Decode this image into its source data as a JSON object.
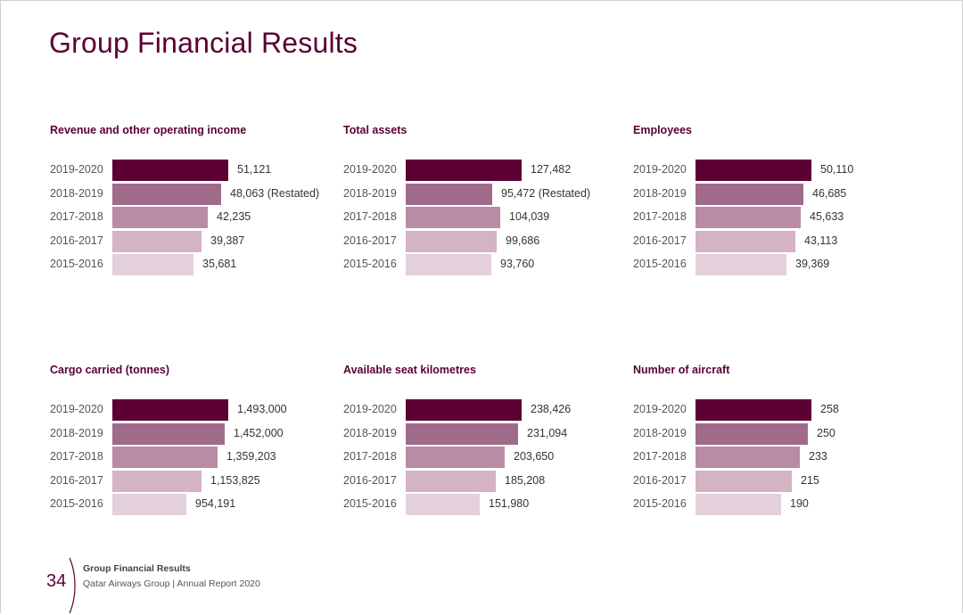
{
  "page": {
    "title": "Group Financial Results",
    "footer": {
      "page_number": "34",
      "section": "Group Financial Results",
      "publication": "Qatar Airways Group | Annual Report 2020"
    }
  },
  "colors": [
    "#5c0033",
    "#a06a8a",
    "#b98ca4",
    "#d3b3c4",
    "#e4d0da"
  ],
  "chart_data": [
    {
      "type": "bar",
      "title": "Revenue and other operating income",
      "categories": [
        "2019-2020",
        "2018-2019",
        "2017-2018",
        "2016-2017",
        "2015-2016"
      ],
      "values": [
        51121,
        48063,
        42235,
        39387,
        35681
      ],
      "labels": [
        "51,121",
        "48,063 (Restated)",
        "42,235",
        "39,387",
        "35,681"
      ]
    },
    {
      "type": "bar",
      "title": "Total assets",
      "categories": [
        "2019-2020",
        "2018-2019",
        "2017-2018",
        "2016-2017",
        "2015-2016"
      ],
      "values": [
        127482,
        95472,
        104039,
        99686,
        93760
      ],
      "labels": [
        "127,482",
        "95,472 (Restated)",
        "104,039",
        "99,686",
        "93,760"
      ]
    },
    {
      "type": "bar",
      "title": "Employees",
      "categories": [
        "2019-2020",
        "2018-2019",
        "2017-2018",
        "2016-2017",
        "2015-2016"
      ],
      "values": [
        50110,
        46685,
        45633,
        43113,
        39369
      ],
      "labels": [
        "50,110",
        "46,685",
        "45,633",
        "43,113",
        "39,369"
      ]
    },
    {
      "type": "bar",
      "title": "Cargo carried (tonnes)",
      "categories": [
        "2019-2020",
        "2018-2019",
        "2017-2018",
        "2016-2017",
        "2015-2016"
      ],
      "values": [
        1493000,
        1452000,
        1359203,
        1153825,
        954191
      ],
      "labels": [
        "1,493,000",
        "1,452,000",
        "1,359,203",
        "1,153,825",
        "954,191"
      ]
    },
    {
      "type": "bar",
      "title": "Available seat kilometres",
      "categories": [
        "2019-2020",
        "2018-2019",
        "2017-2018",
        "2016-2017",
        "2015-2016"
      ],
      "values": [
        238426,
        231094,
        203650,
        185208,
        151980
      ],
      "labels": [
        "238,426",
        "231,094",
        "203,650",
        "185,208",
        "151,980"
      ]
    },
    {
      "type": "bar",
      "title": "Number of aircraft",
      "categories": [
        "2019-2020",
        "2018-2019",
        "2017-2018",
        "2016-2017",
        "2015-2016"
      ],
      "values": [
        258,
        250,
        233,
        215,
        190
      ],
      "labels": [
        "258",
        "250",
        "233",
        "215",
        "190"
      ]
    }
  ]
}
